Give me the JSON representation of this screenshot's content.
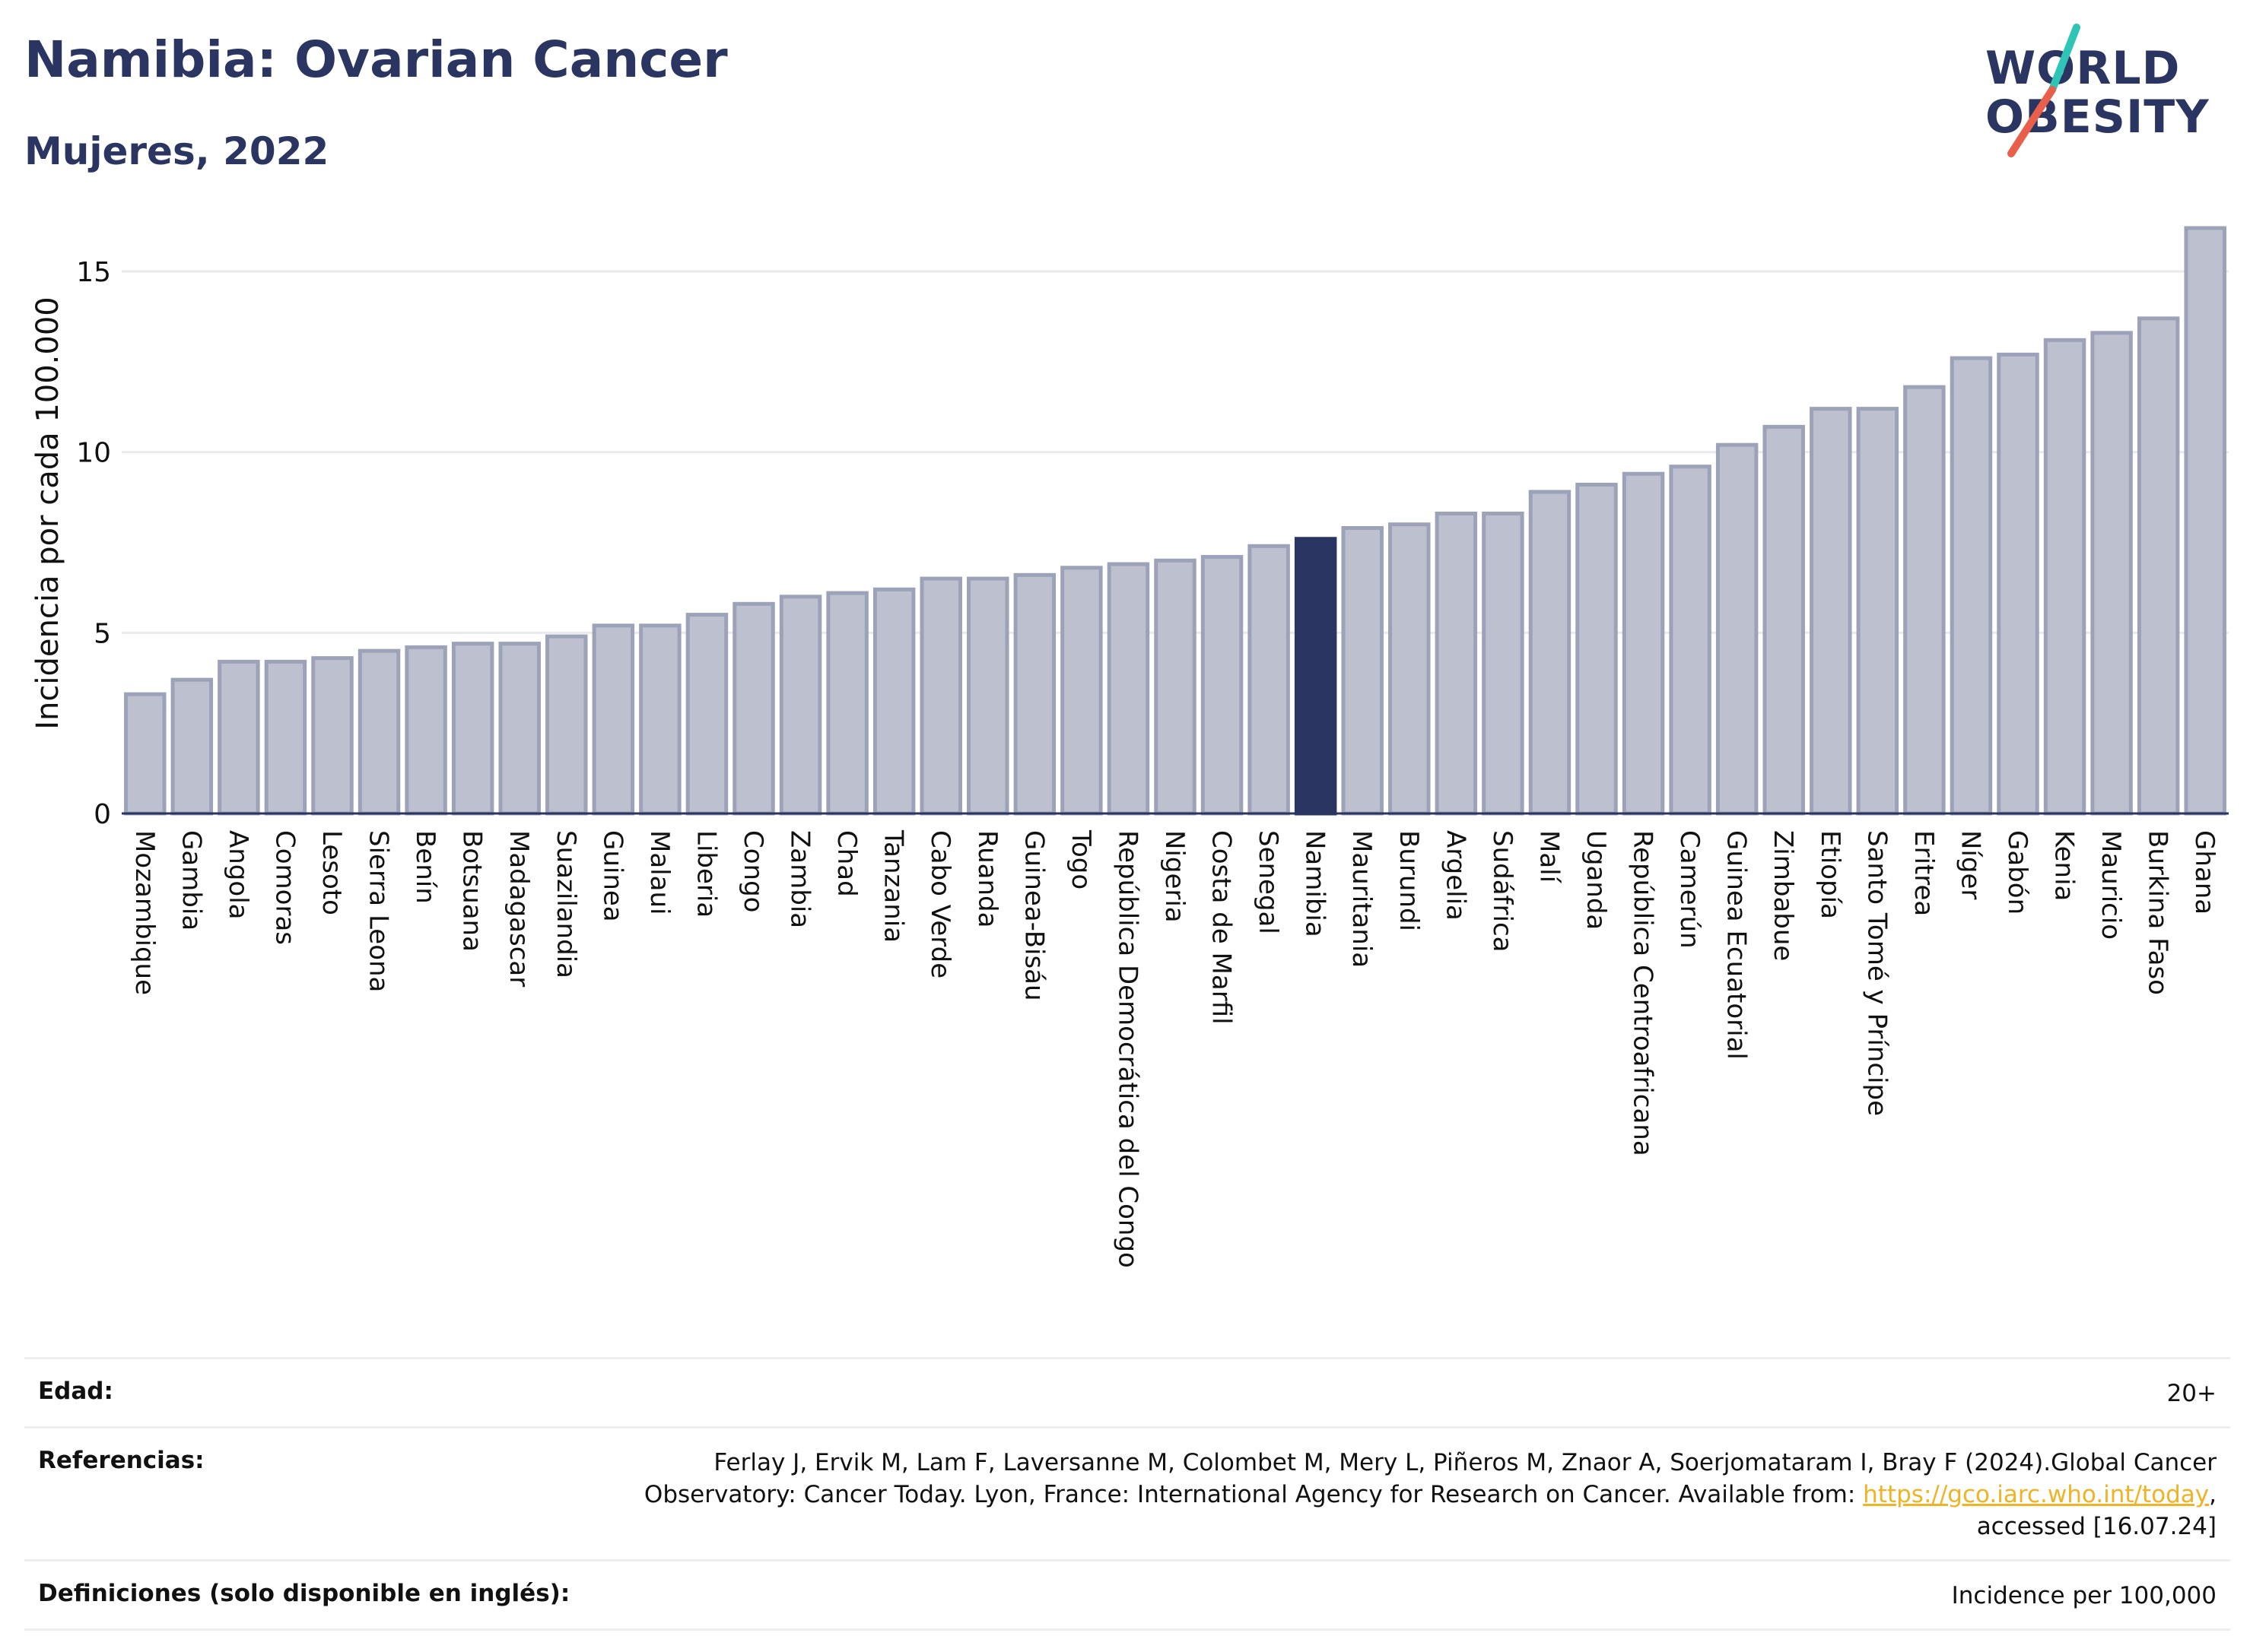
{
  "header": {
    "title": "Namibia: Ovarian Cancer",
    "subtitle": "Mujeres, 2022"
  },
  "logo": {
    "line1": "WORLD",
    "line2": "OBESITY",
    "slash_colors": [
      "#2ec4b6",
      "#e8604c"
    ]
  },
  "colors": {
    "bar": "#bcc0cf",
    "bar_border": "#9ca2b8",
    "highlight": "#2b3561",
    "axis_text": "#111111",
    "grid": "#e9e9ee"
  },
  "chart_data": {
    "type": "bar",
    "ylabel": "Incidencia por cada 100.000",
    "ylim": [
      0,
      16.2
    ],
    "yticks": [
      0,
      5,
      10,
      15
    ],
    "grid": true,
    "highlight": "Namibia",
    "categories": [
      "Mozambique",
      "Gambia",
      "Angola",
      "Comoras",
      "Lesoto",
      "Sierra Leona",
      "Benín",
      "Botsuana",
      "Madagascar",
      "Suazilandia",
      "Guinea",
      "Malaui",
      "Liberia",
      "Congo",
      "Zambia",
      "Chad",
      "Tanzania",
      "Cabo Verde",
      "Ruanda",
      "Guinea-Bisáu",
      "Togo",
      "República Democrática del Congo",
      "Nigeria",
      "Costa de Marfil",
      "Senegal",
      "Namibia",
      "Mauritania",
      "Burundi",
      "Argelia",
      "Sudáfrica",
      "Malí",
      "Uganda",
      "República Centroafricana",
      "Camerún",
      "Guinea Ecuatorial",
      "Zimbabue",
      "Etiopía",
      "Santo Tomé y Príncipe",
      "Eritrea",
      "Níger",
      "Gabón",
      "Kenia",
      "Mauricio",
      "Burkina Faso",
      "Ghana"
    ],
    "values": [
      3.3,
      3.7,
      4.2,
      4.2,
      4.3,
      4.5,
      4.6,
      4.7,
      4.7,
      4.9,
      5.2,
      5.2,
      5.5,
      5.8,
      6.0,
      6.1,
      6.2,
      6.5,
      6.5,
      6.6,
      6.8,
      6.9,
      7.0,
      7.1,
      7.4,
      7.6,
      7.9,
      8.0,
      8.3,
      8.3,
      8.9,
      9.1,
      9.4,
      9.6,
      10.2,
      10.7,
      11.2,
      11.2,
      11.8,
      12.6,
      12.7,
      13.1,
      13.3,
      13.7,
      16.2
    ]
  },
  "meta": {
    "age_label": "Edad:",
    "age_value": "20+",
    "references_label": "Referencias:",
    "references_text": "Ferlay J, Ervik M, Lam F, Laversanne M, Colombet M, Mery L, Piñeros M, Znaor A, Soerjomataram I, Bray F (2024).Global Cancer Observatory: Cancer Today. Lyon, France: International Agency for Research on Cancer. Available from: ",
    "references_link": "https://gco.iarc.who.int/today",
    "references_suffix": ", accessed [16.07.24]",
    "definitions_label": "Definiciones (solo disponible en inglés):",
    "definitions_value": "Incidence per 100,000"
  }
}
